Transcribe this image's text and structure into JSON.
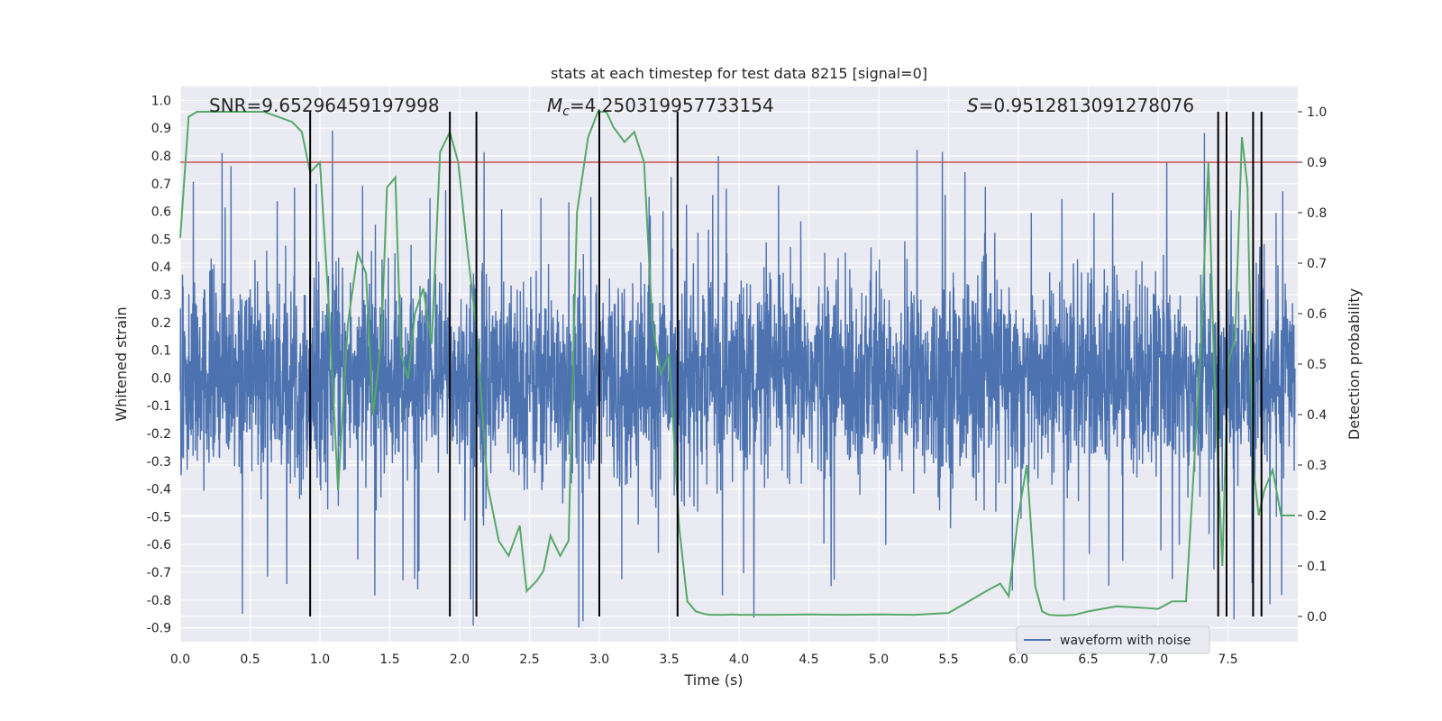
{
  "chart_data": {
    "type": "line",
    "title": "stats at each timestep for test data 8215 [signal=0]",
    "xlabel": "Time (s)",
    "ylabel": "Whitened strain",
    "y2label": "Detection probability",
    "xlim": [
      0.0,
      8.0
    ],
    "ylim": [
      -0.95,
      1.05
    ],
    "y2lim": [
      -0.05,
      1.05
    ],
    "grid": true,
    "legend_placement": "lower-right",
    "x_ticks": [
      "0.0",
      "0.5",
      "1.0",
      "1.5",
      "2.0",
      "2.5",
      "3.0",
      "3.5",
      "4.0",
      "4.5",
      "5.0",
      "5.5",
      "6.0",
      "6.5",
      "7.0",
      "7.5"
    ],
    "y_ticks": [
      "1.0",
      "0.9",
      "0.8",
      "0.7",
      "0.6",
      "0.5",
      "0.4",
      "0.3",
      "0.2",
      "0.1",
      "0.0",
      "-0.1",
      "-0.2",
      "-0.3",
      "-0.4",
      "-0.5",
      "-0.6",
      "-0.7",
      "-0.8",
      "-0.9"
    ],
    "y2_ticks": [
      "1.0",
      "0.9",
      "0.8",
      "0.7",
      "0.6",
      "0.5",
      "0.4",
      "0.3",
      "0.2",
      "0.1",
      "0.0"
    ],
    "annotations": [
      {
        "id": "snr",
        "text": "SNR=9.65296459197998"
      },
      {
        "id": "mc",
        "text_prefix": "M",
        "text_sub": "c",
        "text_suffix": "=4.250319957733154"
      },
      {
        "id": "s",
        "text_prefix": "S",
        "text_suffix": "=0.9512813091278076"
      }
    ],
    "series": [
      {
        "name": "waveform with noise",
        "color": "#4c72b0",
        "axis": "left",
        "description": "dense whitened strain noise, approx amplitude ±0.5 with spikes to ±0.9",
        "envelope": {
          "typical": 0.45,
          "spike_max": 0.98
        }
      },
      {
        "color": "#55a868",
        "axis": "right",
        "x": [
          0.0,
          0.06,
          0.12,
          0.2,
          0.3,
          0.4,
          0.5,
          0.6,
          0.7,
          0.8,
          0.87,
          0.93,
          1.0,
          1.06,
          1.13,
          1.2,
          1.27,
          1.33,
          1.38,
          1.44,
          1.48,
          1.54,
          1.58,
          1.63,
          1.68,
          1.74,
          1.8,
          1.86,
          1.93,
          1.99,
          2.05,
          2.12,
          2.2,
          2.28,
          2.35,
          2.43,
          2.48,
          2.55,
          2.6,
          2.65,
          2.72,
          2.78,
          2.84,
          2.92,
          2.99,
          3.05,
          3.1,
          3.18,
          3.25,
          3.32,
          3.38,
          3.44,
          3.5,
          3.57,
          3.63,
          3.69,
          3.75,
          3.8,
          3.85,
          3.9,
          3.95,
          4.0,
          4.1,
          4.25,
          4.5,
          4.75,
          5.0,
          5.25,
          5.5,
          5.8,
          5.87,
          5.93,
          6.0,
          6.06,
          6.12,
          6.17,
          6.22,
          6.28,
          6.33,
          6.4,
          6.5,
          6.7,
          6.9,
          7.0,
          7.1,
          7.2,
          7.3,
          7.36,
          7.4,
          7.46,
          7.5,
          7.55,
          7.6,
          7.64,
          7.68,
          7.72,
          7.76,
          7.82,
          7.88,
          7.93,
          7.98
        ],
        "values": [
          0.75,
          0.99,
          1.0,
          1.0,
          1.0,
          1.0,
          1.0,
          1.0,
          0.99,
          0.98,
          0.96,
          0.88,
          0.9,
          0.63,
          0.25,
          0.58,
          0.72,
          0.68,
          0.4,
          0.55,
          0.85,
          0.87,
          0.52,
          0.47,
          0.6,
          0.65,
          0.54,
          0.92,
          0.96,
          0.9,
          0.74,
          0.57,
          0.26,
          0.15,
          0.12,
          0.18,
          0.05,
          0.07,
          0.09,
          0.16,
          0.12,
          0.15,
          0.8,
          0.95,
          1.0,
          1.0,
          0.97,
          0.94,
          0.96,
          0.9,
          0.58,
          0.48,
          0.52,
          0.18,
          0.03,
          0.01,
          0.005,
          0.003,
          0.003,
          0.003,
          0.004,
          0.003,
          0.003,
          0.003,
          0.004,
          0.003,
          0.004,
          0.003,
          0.007,
          0.055,
          0.065,
          0.04,
          0.2,
          0.3,
          0.06,
          0.01,
          0.003,
          0.002,
          0.002,
          0.003,
          0.01,
          0.02,
          0.017,
          0.015,
          0.03,
          0.03,
          0.5,
          0.9,
          0.5,
          0.1,
          0.5,
          0.55,
          0.95,
          0.85,
          0.3,
          0.2,
          0.25,
          0.29,
          0.2,
          0.2,
          0.2
        ]
      }
    ],
    "threshold_line": {
      "color": "#c44e52",
      "y2_value": 0.9
    },
    "vertical_markers": {
      "color": "#000000",
      "x": [
        0.93,
        1.93,
        2.12,
        3.0,
        3.56,
        7.43,
        7.49,
        7.68,
        7.74
      ]
    }
  }
}
